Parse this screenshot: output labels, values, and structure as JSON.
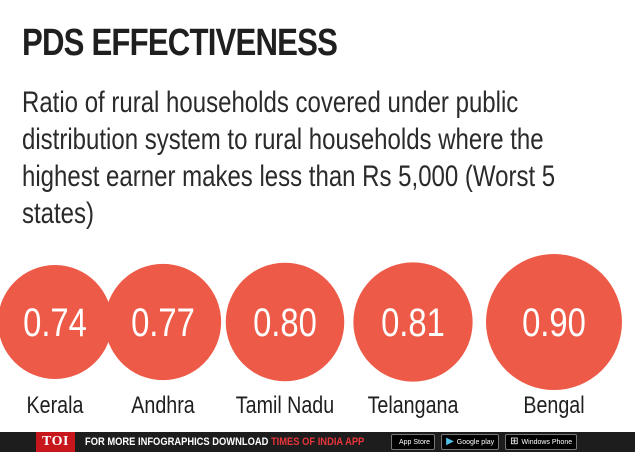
{
  "title": "PDS EFFECTIVENESS",
  "subtitle": "Ratio of rural households covered under public distribution system to rural households where the highest earner makes less than Rs 5,000 (Worst 5 states)",
  "colors": {
    "bubble": "#ee5a48",
    "text_dark": "#1f1f1f",
    "footer_bg": "#1d1d1d",
    "brand_red": "#c8161d"
  },
  "chart_data": {
    "type": "bubble",
    "categories": [
      "Kerala",
      "Andhra",
      "Tamil Nadu",
      "Telangana",
      "Bengal"
    ],
    "values": [
      0.74,
      0.77,
      0.8,
      0.81,
      0.9
    ],
    "value_labels": [
      "0.74",
      "0.77",
      "0.80",
      "0.81",
      "0.90"
    ],
    "title": "PDS EFFECTIVENESS"
  },
  "footer": {
    "logo": "TOI",
    "text_lead": "FOR MORE INFOGRAPHICS DOWNLOAD ",
    "text_brand": "TIMES OF INDIA APP",
    "badges": [
      {
        "icon": "apple-icon",
        "glyph": "",
        "label": "App Store"
      },
      {
        "icon": "google-play-icon",
        "glyph": "▶",
        "label": "Google play"
      },
      {
        "icon": "windows-icon",
        "glyph": "⊞",
        "label": "Windows Phone"
      }
    ]
  }
}
